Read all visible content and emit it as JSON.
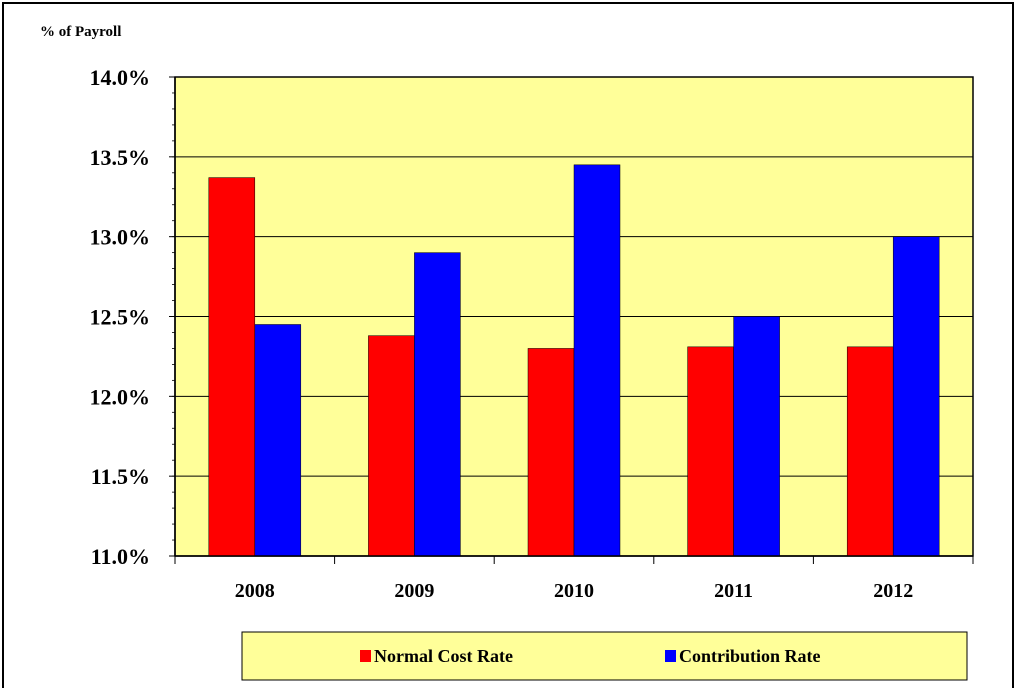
{
  "chart_data": {
    "type": "bar",
    "ylabel": "% of Payroll",
    "xlabel": "",
    "title": "",
    "categories": [
      "2008",
      "2009",
      "2010",
      "2011",
      "2012"
    ],
    "series": [
      {
        "name": "Normal Cost Rate",
        "values": [
          13.37,
          12.38,
          12.3,
          12.31,
          12.31
        ]
      },
      {
        "name": "Contribution Rate",
        "values": [
          12.45,
          12.9,
          13.45,
          12.5,
          13.0
        ]
      }
    ],
    "ylim": [
      11.0,
      14.0
    ],
    "yticks": [
      "11.0%",
      "11.5%",
      "12.0%",
      "12.5%",
      "13.0%",
      "13.5%",
      "14.0%"
    ],
    "ytick_values": [
      11.0,
      11.5,
      12.0,
      12.5,
      13.0,
      13.5,
      14.0
    ],
    "grid": true,
    "legend_position": "bottom",
    "colors": {
      "plot_background": "#FFFF99",
      "series": [
        "#FF0000",
        "#0000FF"
      ],
      "gridline": "#000000"
    }
  }
}
